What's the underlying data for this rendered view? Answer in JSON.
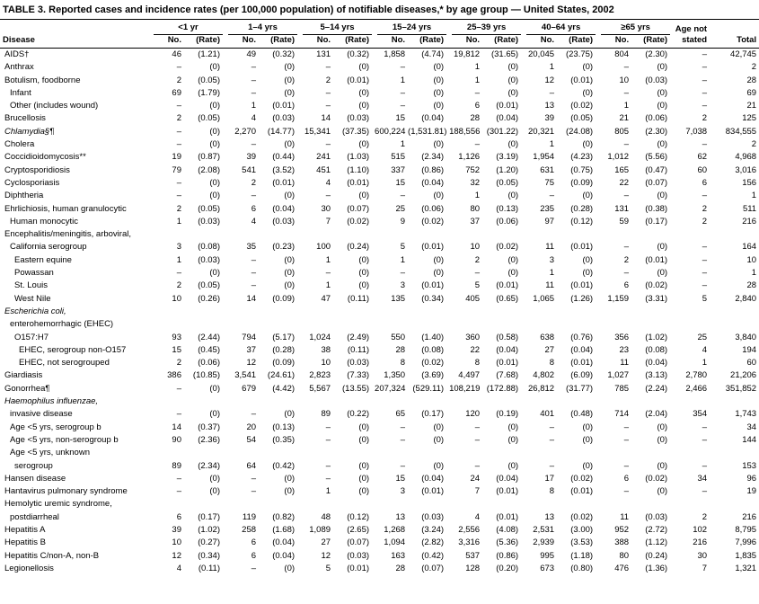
{
  "title": "TABLE 3. Reported cases and incidence rates (per 100,000 population) of notifiable diseases,* by age group — United States, 2002",
  "table": {
    "col_disease": "Disease",
    "age_groups": [
      "<1 yr",
      "1–4 yrs",
      "5–14 yrs",
      "15–24 yrs",
      "25–39 yrs",
      "40–64 yrs",
      "≥65 yrs"
    ],
    "no_label": "No.",
    "rate_label": "(Rate)",
    "age_not_line1": "Age not",
    "age_not_line2": "stated",
    "total_label": "Total",
    "rows": [
      {
        "label": "AIDS†",
        "indent": 0,
        "italic": false,
        "cells": [
          "46",
          "(1.21)",
          "49",
          "(0.32)",
          "131",
          "(0.32)",
          "1,858",
          "(4.74)",
          "19,812",
          "(31.65)",
          "20,045",
          "(23.75)",
          "804",
          "(2.30)",
          "–",
          "42,745"
        ]
      },
      {
        "label": "Anthrax",
        "indent": 0,
        "italic": false,
        "cells": [
          "–",
          "(0)",
          "–",
          "(0)",
          "–",
          "(0)",
          "–",
          "(0)",
          "1",
          "(0)",
          "1",
          "(0)",
          "–",
          "(0)",
          "–",
          "2"
        ]
      },
      {
        "label": "Botulism, foodborne",
        "indent": 0,
        "italic": false,
        "cells": [
          "2",
          "(0.05)",
          "–",
          "(0)",
          "2",
          "(0.01)",
          "1",
          "(0)",
          "1",
          "(0)",
          "12",
          "(0.01)",
          "10",
          "(0.03)",
          "–",
          "28"
        ]
      },
      {
        "label": "Infant",
        "indent": 1,
        "italic": false,
        "cells": [
          "69",
          "(1.79)",
          "–",
          "(0)",
          "–",
          "(0)",
          "–",
          "(0)",
          "–",
          "(0)",
          "–",
          "(0)",
          "–",
          "(0)",
          "–",
          "69"
        ]
      },
      {
        "label": "Other (includes wound)",
        "indent": 1,
        "italic": false,
        "cells": [
          "–",
          "(0)",
          "1",
          "(0.01)",
          "–",
          "(0)",
          "–",
          "(0)",
          "6",
          "(0.01)",
          "13",
          "(0.02)",
          "1",
          "(0)",
          "–",
          "21"
        ]
      },
      {
        "label": "Brucellosis",
        "indent": 0,
        "italic": false,
        "cells": [
          "2",
          "(0.05)",
          "4",
          "(0.03)",
          "14",
          "(0.03)",
          "15",
          "(0.04)",
          "28",
          "(0.04)",
          "39",
          "(0.05)",
          "21",
          "(0.06)",
          "2",
          "125"
        ]
      },
      {
        "label": "Chlamydia§¶",
        "indent": 0,
        "italic": true,
        "cells": [
          "–",
          "(0)",
          "2,270",
          "(14.77)",
          "15,341",
          "(37.35)",
          "600,224",
          "(1,531.81)",
          "188,556",
          "(301.22)",
          "20,321",
          "(24.08)",
          "805",
          "(2.30)",
          "7,038",
          "834,555"
        ]
      },
      {
        "label": "Cholera",
        "indent": 0,
        "italic": false,
        "cells": [
          "–",
          "(0)",
          "–",
          "(0)",
          "–",
          "(0)",
          "1",
          "(0)",
          "–",
          "(0)",
          "1",
          "(0)",
          "–",
          "(0)",
          "–",
          "2"
        ]
      },
      {
        "label": "Coccidioidomycosis**",
        "indent": 0,
        "italic": false,
        "cells": [
          "19",
          "(0.87)",
          "39",
          "(0.44)",
          "241",
          "(1.03)",
          "515",
          "(2.34)",
          "1,126",
          "(3.19)",
          "1,954",
          "(4.23)",
          "1,012",
          "(5.56)",
          "62",
          "4,968"
        ]
      },
      {
        "label": "Cryptosporidiosis",
        "indent": 0,
        "italic": false,
        "cells": [
          "79",
          "(2.08)",
          "541",
          "(3.52)",
          "451",
          "(1.10)",
          "337",
          "(0.86)",
          "752",
          "(1.20)",
          "631",
          "(0.75)",
          "165",
          "(0.47)",
          "60",
          "3,016"
        ]
      },
      {
        "label": "Cyclosporiasis",
        "indent": 0,
        "italic": false,
        "cells": [
          "–",
          "(0)",
          "2",
          "(0.01)",
          "4",
          "(0.01)",
          "15",
          "(0.04)",
          "32",
          "(0.05)",
          "75",
          "(0.09)",
          "22",
          "(0.07)",
          "6",
          "156"
        ]
      },
      {
        "label": "Diphtheria",
        "indent": 0,
        "italic": false,
        "cells": [
          "–",
          "(0)",
          "–",
          "(0)",
          "–",
          "(0)",
          "–",
          "(0)",
          "1",
          "(0)",
          "–",
          "(0)",
          "–",
          "(0)",
          "–",
          "1"
        ]
      },
      {
        "label": "Ehrlichiosis, human granulocytic",
        "indent": 0,
        "italic": false,
        "cells": [
          "2",
          "(0.05)",
          "6",
          "(0.04)",
          "30",
          "(0.07)",
          "25",
          "(0.06)",
          "80",
          "(0.13)",
          "235",
          "(0.28)",
          "131",
          "(0.38)",
          "2",
          "511"
        ]
      },
      {
        "label": "Human monocytic",
        "indent": 1,
        "italic": false,
        "cells": [
          "1",
          "(0.03)",
          "4",
          "(0.03)",
          "7",
          "(0.02)",
          "9",
          "(0.02)",
          "37",
          "(0.06)",
          "97",
          "(0.12)",
          "59",
          "(0.17)",
          "2",
          "216"
        ]
      },
      {
        "label": "Encephalitis/meningitis, arboviral,",
        "indent": 0,
        "italic": false,
        "cells": []
      },
      {
        "label": "California serogroup",
        "indent": 1,
        "italic": false,
        "cells": [
          "3",
          "(0.08)",
          "35",
          "(0.23)",
          "100",
          "(0.24)",
          "5",
          "(0.01)",
          "10",
          "(0.02)",
          "11",
          "(0.01)",
          "–",
          "(0)",
          "–",
          "164"
        ]
      },
      {
        "label": "Eastern equine",
        "indent": 2,
        "italic": false,
        "cells": [
          "1",
          "(0.03)",
          "–",
          "(0)",
          "1",
          "(0)",
          "1",
          "(0)",
          "2",
          "(0)",
          "3",
          "(0)",
          "2",
          "(0.01)",
          "–",
          "10"
        ]
      },
      {
        "label": "Powassan",
        "indent": 2,
        "italic": false,
        "cells": [
          "–",
          "(0)",
          "–",
          "(0)",
          "–",
          "(0)",
          "–",
          "(0)",
          "–",
          "(0)",
          "1",
          "(0)",
          "–",
          "(0)",
          "–",
          "1"
        ]
      },
      {
        "label": "St. Louis",
        "indent": 2,
        "italic": false,
        "cells": [
          "2",
          "(0.05)",
          "–",
          "(0)",
          "1",
          "(0)",
          "3",
          "(0.01)",
          "5",
          "(0.01)",
          "11",
          "(0.01)",
          "6",
          "(0.02)",
          "–",
          "28"
        ]
      },
      {
        "label": "West Nile",
        "indent": 2,
        "italic": false,
        "cells": [
          "10",
          "(0.26)",
          "14",
          "(0.09)",
          "47",
          "(0.11)",
          "135",
          "(0.34)",
          "405",
          "(0.65)",
          "1,065",
          "(1.26)",
          "1,159",
          "(3.31)",
          "5",
          "2,840"
        ]
      },
      {
        "label": "Escherichia coli,",
        "indent": 0,
        "italic": true,
        "cells": []
      },
      {
        "label": "enterohemorrhagic (EHEC)",
        "indent": 1,
        "italic": false,
        "cells": []
      },
      {
        "label": "O157:H7",
        "indent": 2,
        "italic": false,
        "cells": [
          "93",
          "(2.44)",
          "794",
          "(5.17)",
          "1,024",
          "(2.49)",
          "550",
          "(1.40)",
          "360",
          "(0.58)",
          "638",
          "(0.76)",
          "356",
          "(1.02)",
          "25",
          "3,840"
        ]
      },
      {
        "label": "EHEC, serogroup non-O157",
        "indent": 3,
        "italic": false,
        "cells": [
          "15",
          "(0.45)",
          "37",
          "(0.28)",
          "38",
          "(0.11)",
          "28",
          "(0.08)",
          "22",
          "(0.04)",
          "27",
          "(0.04)",
          "23",
          "(0.08)",
          "4",
          "194"
        ]
      },
      {
        "label": "EHEC, not serogrouped",
        "indent": 3,
        "italic": false,
        "cells": [
          "2",
          "(0.06)",
          "12",
          "(0.09)",
          "10",
          "(0.03)",
          "8",
          "(0.02)",
          "8",
          "(0.01)",
          "8",
          "(0.01)",
          "11",
          "(0.04)",
          "1",
          "60"
        ]
      },
      {
        "label": "Giardiasis",
        "indent": 0,
        "italic": false,
        "cells": [
          "386",
          "(10.85)",
          "3,541",
          "(24.61)",
          "2,823",
          "(7.33)",
          "1,350",
          "(3.69)",
          "4,497",
          "(7.68)",
          "4,802",
          "(6.09)",
          "1,027",
          "(3.13)",
          "2,780",
          "21,206"
        ]
      },
      {
        "label": "Gonorrhea¶",
        "indent": 0,
        "italic": false,
        "cells": [
          "–",
          "(0)",
          "679",
          "(4.42)",
          "5,567",
          "(13.55)",
          "207,324",
          "(529.11)",
          "108,219",
          "(172.88)",
          "26,812",
          "(31.77)",
          "785",
          "(2.24)",
          "2,466",
          "351,852"
        ]
      },
      {
        "label": "Haemophilus influenzae,",
        "indent": 0,
        "italic": true,
        "cells": []
      },
      {
        "label": "invasive disease",
        "indent": 1,
        "italic": false,
        "cells": [
          "–",
          "(0)",
          "–",
          "(0)",
          "89",
          "(0.22)",
          "65",
          "(0.17)",
          "120",
          "(0.19)",
          "401",
          "(0.48)",
          "714",
          "(2.04)",
          "354",
          "1,743"
        ]
      },
      {
        "label": "Age <5 yrs, serogroup b",
        "indent": 1,
        "italic": false,
        "cells": [
          "14",
          "(0.37)",
          "20",
          "(0.13)",
          "–",
          "(0)",
          "–",
          "(0)",
          "–",
          "(0)",
          "–",
          "(0)",
          "–",
          "(0)",
          "–",
          "34"
        ]
      },
      {
        "label": "Age <5 yrs, non-serogroup b",
        "indent": 1,
        "italic": false,
        "cells": [
          "90",
          "(2.36)",
          "54",
          "(0.35)",
          "–",
          "(0)",
          "–",
          "(0)",
          "–",
          "(0)",
          "–",
          "(0)",
          "–",
          "(0)",
          "–",
          "144"
        ]
      },
      {
        "label": "Age <5 yrs, unknown",
        "indent": 1,
        "italic": false,
        "cells": []
      },
      {
        "label": "serogroup",
        "indent": 2,
        "italic": false,
        "cells": [
          "89",
          "(2.34)",
          "64",
          "(0.42)",
          "–",
          "(0)",
          "–",
          "(0)",
          "–",
          "(0)",
          "–",
          "(0)",
          "–",
          "(0)",
          "–",
          "153"
        ]
      },
      {
        "label": "Hansen disease",
        "indent": 0,
        "italic": false,
        "cells": [
          "–",
          "(0)",
          "–",
          "(0)",
          "–",
          "(0)",
          "15",
          "(0.04)",
          "24",
          "(0.04)",
          "17",
          "(0.02)",
          "6",
          "(0.02)",
          "34",
          "96"
        ]
      },
      {
        "label": "Hantavirus pulmonary syndrome",
        "indent": 0,
        "italic": false,
        "cells": [
          "–",
          "(0)",
          "–",
          "(0)",
          "1",
          "(0)",
          "3",
          "(0.01)",
          "7",
          "(0.01)",
          "8",
          "(0.01)",
          "–",
          "(0)",
          "–",
          "19"
        ]
      },
      {
        "label": "Hemolytic uremic syndrome,",
        "indent": 0,
        "italic": false,
        "cells": []
      },
      {
        "label": "postdiarrheal",
        "indent": 1,
        "italic": false,
        "cells": [
          "6",
          "(0.17)",
          "119",
          "(0.82)",
          "48",
          "(0.12)",
          "13",
          "(0.03)",
          "4",
          "(0.01)",
          "13",
          "(0.02)",
          "11",
          "(0.03)",
          "2",
          "216"
        ]
      },
      {
        "label": "Hepatitis A",
        "indent": 0,
        "italic": false,
        "cells": [
          "39",
          "(1.02)",
          "258",
          "(1.68)",
          "1,089",
          "(2.65)",
          "1,268",
          "(3.24)",
          "2,556",
          "(4.08)",
          "2,531",
          "(3.00)",
          "952",
          "(2.72)",
          "102",
          "8,795"
        ]
      },
      {
        "label": "Hepatitis B",
        "indent": 0,
        "italic": false,
        "cells": [
          "10",
          "(0.27)",
          "6",
          "(0.04)",
          "27",
          "(0.07)",
          "1,094",
          "(2.82)",
          "3,316",
          "(5.36)",
          "2,939",
          "(3.53)",
          "388",
          "(1.12)",
          "216",
          "7,996"
        ]
      },
      {
        "label": "Hepatitis C/non-A, non-B",
        "indent": 0,
        "italic": false,
        "cells": [
          "12",
          "(0.34)",
          "6",
          "(0.04)",
          "12",
          "(0.03)",
          "163",
          "(0.42)",
          "537",
          "(0.86)",
          "995",
          "(1.18)",
          "80",
          "(0.24)",
          "30",
          "1,835"
        ]
      },
      {
        "label": "Legionellosis",
        "indent": 0,
        "italic": false,
        "cells": [
          "4",
          "(0.11)",
          "–",
          "(0)",
          "5",
          "(0.01)",
          "28",
          "(0.07)",
          "128",
          "(0.20)",
          "673",
          "(0.80)",
          "476",
          "(1.36)",
          "7",
          "1,321"
        ]
      }
    ]
  }
}
